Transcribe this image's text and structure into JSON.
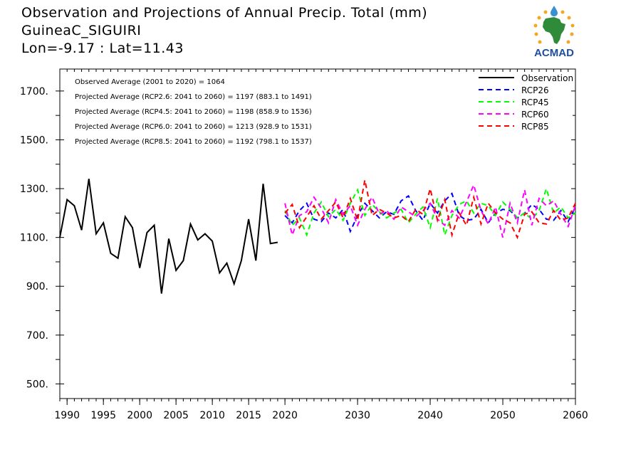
{
  "header": {
    "title": "Observation and Projections of Annual Precip. Total (mm)",
    "station": "GuineaC_SIGUIRI",
    "coords": "Lon=-9.17 : Lat=11.43"
  },
  "logo": {
    "text": "ACMAD"
  },
  "colors": {
    "observation": "#000000",
    "rcp26": "#0000ff",
    "rcp45": "#00ff00",
    "rcp60": "#ff00ff",
    "rcp85": "#ff0000"
  },
  "chart_data": {
    "type": "line",
    "xlim": [
      1989,
      2060
    ],
    "ylim": [
      440,
      1790
    ],
    "xticks": [
      1990,
      1995,
      2000,
      2005,
      2010,
      2015,
      2020,
      2030,
      2040,
      2050,
      2060
    ],
    "yticks": [
      500,
      700,
      900,
      1100,
      1300,
      1500,
      1700
    ],
    "ytick_labels": [
      "500.",
      "700.",
      "900.",
      "1100.",
      "1300.",
      "1500.",
      "1700."
    ],
    "annotations": [
      "Observed Average (2001 to 2020) = 1064",
      "Projected Average (RCP2.6: 2041 to 2060) = 1197 (883.1 to 1491)",
      "Projected Average (RCP4.5: 2041 to 2060) = 1198 (858.9 to 1536)",
      "Projected Average (RCP6.0: 2041 to 2060) = 1213 (928.9 to 1531)",
      "Projected Average (RCP8.5: 2041 to 2060) = 1192 (798.1 to 1537)"
    ],
    "legend_position": "top-right",
    "series": [
      {
        "name": "Observation",
        "key": "observation",
        "dashed": false,
        "x": [
          1989,
          1990,
          1991,
          1992,
          1993,
          1994,
          1995,
          1996,
          1997,
          1998,
          1999,
          2000,
          2001,
          2002,
          2003,
          2004,
          2005,
          2006,
          2007,
          2008,
          2009,
          2010,
          2011,
          2012,
          2013,
          2014,
          2015,
          2016,
          2017,
          2018,
          2019
        ],
        "values": [
          1100,
          1255,
          1230,
          1130,
          1340,
          1115,
          1160,
          1035,
          1015,
          1185,
          1140,
          975,
          1120,
          1150,
          870,
          1095,
          965,
          1005,
          1155,
          1090,
          1115,
          1085,
          955,
          995,
          910,
          1005,
          1175,
          1005,
          1320,
          1075,
          1080
        ]
      },
      {
        "name": "RCP26",
        "key": "rcp26",
        "dashed": true,
        "x": [
          2020,
          2021,
          2022,
          2023,
          2024,
          2025,
          2026,
          2027,
          2028,
          2029,
          2030,
          2031,
          2032,
          2033,
          2034,
          2035,
          2036,
          2037,
          2038,
          2039,
          2040,
          2041,
          2042,
          2043,
          2044,
          2045,
          2046,
          2047,
          2048,
          2049,
          2050,
          2051,
          2052,
          2053,
          2054,
          2055,
          2056,
          2057,
          2058,
          2059,
          2060
        ],
        "values": [
          1190,
          1160,
          1210,
          1240,
          1175,
          1165,
          1200,
          1180,
          1215,
          1125,
          1190,
          1240,
          1210,
          1180,
          1205,
          1195,
          1250,
          1270,
          1210,
          1170,
          1240,
          1200,
          1250,
          1280,
          1190,
          1170,
          1175,
          1215,
          1160,
          1200,
          1215,
          1210,
          1180,
          1200,
          1235,
          1215,
          1175,
          1170,
          1210,
          1165,
          1225
        ]
      },
      {
        "name": "RCP45",
        "key": "rcp45",
        "dashed": true,
        "x": [
          2020,
          2021,
          2022,
          2023,
          2024,
          2025,
          2026,
          2027,
          2028,
          2029,
          2030,
          2031,
          2032,
          2033,
          2034,
          2035,
          2036,
          2037,
          2038,
          2039,
          2040,
          2041,
          2042,
          2043,
          2044,
          2045,
          2046,
          2047,
          2048,
          2049,
          2050,
          2051,
          2052,
          2053,
          2054,
          2055,
          2056,
          2057,
          2058,
          2059,
          2060
        ],
        "values": [
          1210,
          1150,
          1180,
          1110,
          1200,
          1245,
          1185,
          1215,
          1170,
          1240,
          1295,
          1190,
          1235,
          1205,
          1180,
          1200,
          1215,
          1160,
          1195,
          1225,
          1140,
          1260,
          1110,
          1190,
          1235,
          1250,
          1200,
          1240,
          1230,
          1190,
          1245,
          1215,
          1180,
          1200,
          1175,
          1210,
          1300,
          1200,
          1225,
          1180,
          1200
        ]
      },
      {
        "name": "RCP60",
        "key": "rcp60",
        "dashed": true,
        "x": [
          2020,
          2021,
          2022,
          2023,
          2024,
          2025,
          2026,
          2027,
          2028,
          2029,
          2030,
          2031,
          2032,
          2033,
          2034,
          2035,
          2036,
          2037,
          2038,
          2039,
          2040,
          2041,
          2042,
          2043,
          2044,
          2045,
          2046,
          2047,
          2048,
          2049,
          2050,
          2051,
          2052,
          2053,
          2054,
          2055,
          2056,
          2057,
          2058,
          2059,
          2060
        ],
        "values": [
          1240,
          1110,
          1190,
          1205,
          1265,
          1220,
          1160,
          1255,
          1195,
          1230,
          1150,
          1215,
          1265,
          1195,
          1210,
          1175,
          1225,
          1205,
          1185,
          1210,
          1240,
          1175,
          1150,
          1210,
          1180,
          1245,
          1315,
          1210,
          1155,
          1225,
          1100,
          1240,
          1160,
          1295,
          1150,
          1260,
          1230,
          1250,
          1195,
          1145,
          1230
        ]
      },
      {
        "name": "RCP85",
        "key": "rcp85",
        "dashed": true,
        "x": [
          2020,
          2021,
          2022,
          2023,
          2024,
          2025,
          2026,
          2027,
          2028,
          2029,
          2030,
          2031,
          2032,
          2033,
          2034,
          2035,
          2036,
          2037,
          2038,
          2039,
          2040,
          2041,
          2042,
          2043,
          2044,
          2045,
          2046,
          2047,
          2048,
          2049,
          2050,
          2051,
          2052,
          2053,
          2054,
          2055,
          2056,
          2057,
          2058,
          2059,
          2060
        ],
        "values": [
          1200,
          1235,
          1140,
          1185,
          1230,
          1175,
          1210,
          1245,
          1180,
          1260,
          1170,
          1335,
          1190,
          1215,
          1200,
          1180,
          1190,
          1165,
          1215,
          1195,
          1300,
          1170,
          1255,
          1110,
          1200,
          1150,
          1265,
          1155,
          1240,
          1200,
          1175,
          1160,
          1100,
          1195,
          1205,
          1160,
          1155,
          1210,
          1170,
          1180,
          1240
        ]
      }
    ]
  }
}
